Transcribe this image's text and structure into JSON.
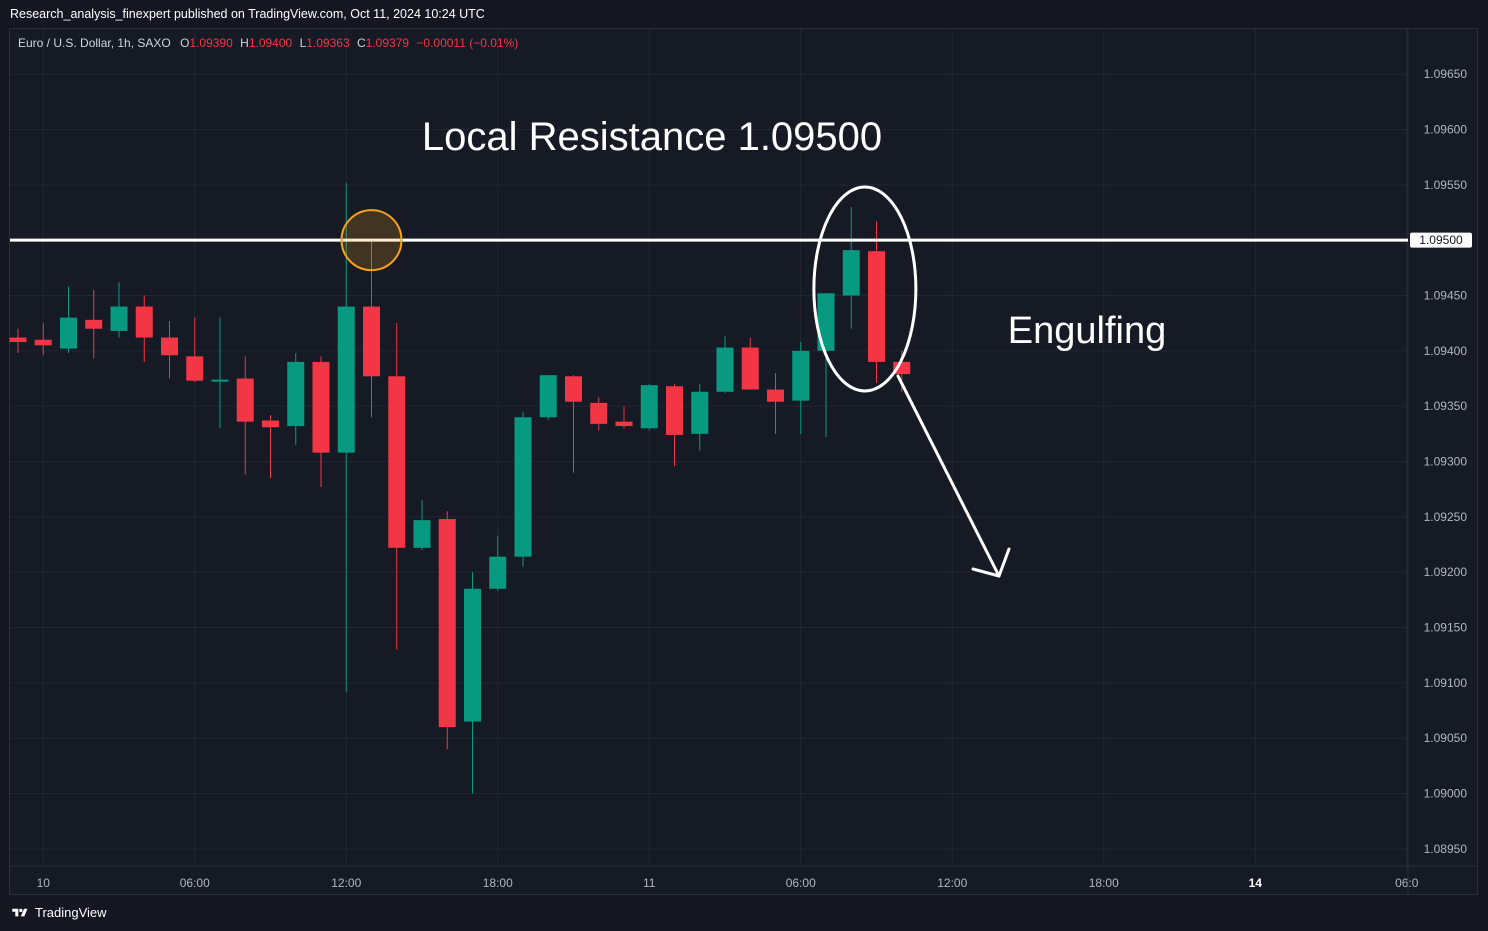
{
  "header": {
    "published_line": "Research_analysis_finexpert published on TradingView.com, Oct 11, 2024 10:24 UTC"
  },
  "legend": {
    "symbol": "Euro / U.S. Dollar, 1h, SAXO",
    "o_label": "O",
    "o_value": "1.09390",
    "h_label": "H",
    "h_value": "1.09400",
    "l_label": "L",
    "l_value": "1.09363",
    "c_label": "C",
    "c_value": "1.09379",
    "change": "−0.00011 (−0.01%)"
  },
  "footer": {
    "brand": "TradingView"
  },
  "colors": {
    "background": "#161a25",
    "up": "#089981",
    "down": "#f23645",
    "grid": "#232632",
    "axis_text": "#b2b5be",
    "annotation": "#ffffff",
    "highlight_circle": "#f7a21b"
  },
  "chart_data": {
    "type": "candlestick",
    "ylim": [
      1.08925,
      1.09675
    ],
    "y_ticks": [
      "1.09650",
      "1.09600",
      "1.09550",
      "1.09500",
      "1.09450",
      "1.09400",
      "1.09350",
      "1.09300",
      "1.09250",
      "1.09200",
      "1.09150",
      "1.09100",
      "1.09050",
      "1.09000",
      "1.08950"
    ],
    "x_ticks": [
      {
        "label": "10",
        "index": 1,
        "bold": false
      },
      {
        "label": "06:00",
        "index": 7,
        "bold": false
      },
      {
        "label": "12:00",
        "index": 13,
        "bold": false
      },
      {
        "label": "18:00",
        "index": 19,
        "bold": false
      },
      {
        "label": "11",
        "index": 25,
        "bold": false
      },
      {
        "label": "06:00",
        "index": 31,
        "bold": false
      },
      {
        "label": "12:00",
        "index": 37,
        "bold": false
      },
      {
        "label": "18:00",
        "index": 43,
        "bold": false
      },
      {
        "label": "14",
        "index": 49,
        "bold": true
      },
      {
        "label": "06:0",
        "index": 55,
        "bold": false
      }
    ],
    "candles": [
      {
        "o": 1.09412,
        "h": 1.0942,
        "l": 1.09398,
        "c": 1.09408
      },
      {
        "o": 1.0941,
        "h": 1.09425,
        "l": 1.09396,
        "c": 1.09405
      },
      {
        "o": 1.09402,
        "h": 1.09458,
        "l": 1.09398,
        "c": 1.0943
      },
      {
        "o": 1.09428,
        "h": 1.09455,
        "l": 1.09393,
        "c": 1.0942
      },
      {
        "o": 1.09418,
        "h": 1.09462,
        "l": 1.09412,
        "c": 1.0944
      },
      {
        "o": 1.0944,
        "h": 1.0945,
        "l": 1.0939,
        "c": 1.09412
      },
      {
        "o": 1.09412,
        "h": 1.09427,
        "l": 1.09375,
        "c": 1.09396
      },
      {
        "o": 1.09395,
        "h": 1.0943,
        "l": 1.09372,
        "c": 1.09373
      },
      {
        "o": 1.09374,
        "h": 1.0943,
        "l": 1.0933,
        "c": 1.09374
      },
      {
        "o": 1.09375,
        "h": 1.09395,
        "l": 1.09288,
        "c": 1.09336
      },
      {
        "o": 1.09337,
        "h": 1.09342,
        "l": 1.09285,
        "c": 1.09331
      },
      {
        "o": 1.09332,
        "h": 1.09398,
        "l": 1.09315,
        "c": 1.0939
      },
      {
        "o": 1.0939,
        "h": 1.09395,
        "l": 1.09277,
        "c": 1.09308
      },
      {
        "o": 1.09308,
        "h": 1.09552,
        "l": 1.09092,
        "c": 1.0944
      },
      {
        "o": 1.0944,
        "h": 1.095,
        "l": 1.0934,
        "c": 1.09377
      },
      {
        "o": 1.09377,
        "h": 1.09425,
        "l": 1.0913,
        "c": 1.09222
      },
      {
        "o": 1.09222,
        "h": 1.09265,
        "l": 1.0922,
        "c": 1.09247
      },
      {
        "o": 1.09248,
        "h": 1.09255,
        "l": 1.0904,
        "c": 1.0906
      },
      {
        "o": 1.09065,
        "h": 1.092,
        "l": 1.09,
        "c": 1.09185
      },
      {
        "o": 1.09185,
        "h": 1.09233,
        "l": 1.09183,
        "c": 1.09214
      },
      {
        "o": 1.09214,
        "h": 1.09345,
        "l": 1.09205,
        "c": 1.0934
      },
      {
        "o": 1.0934,
        "h": 1.09378,
        "l": 1.09338,
        "c": 1.09378
      },
      {
        "o": 1.09377,
        "h": 1.09378,
        "l": 1.0929,
        "c": 1.09354
      },
      {
        "o": 1.09353,
        "h": 1.09358,
        "l": 1.09328,
        "c": 1.09334
      },
      {
        "o": 1.09336,
        "h": 1.0935,
        "l": 1.0933,
        "c": 1.09332
      },
      {
        "o": 1.0933,
        "h": 1.0937,
        "l": 1.09328,
        "c": 1.09369
      },
      {
        "o": 1.09368,
        "h": 1.0937,
        "l": 1.09296,
        "c": 1.09324
      },
      {
        "o": 1.09325,
        "h": 1.0937,
        "l": 1.0931,
        "c": 1.09363
      },
      {
        "o": 1.09363,
        "h": 1.09413,
        "l": 1.09362,
        "c": 1.09403
      },
      {
        "o": 1.09403,
        "h": 1.09412,
        "l": 1.09366,
        "c": 1.09365
      },
      {
        "o": 1.09365,
        "h": 1.0938,
        "l": 1.09325,
        "c": 1.09354
      },
      {
        "o": 1.09355,
        "h": 1.09408,
        "l": 1.09325,
        "c": 1.094
      },
      {
        "o": 1.094,
        "h": 1.09452,
        "l": 1.09322,
        "c": 1.09452
      },
      {
        "o": 1.0945,
        "h": 1.0953,
        "l": 1.0942,
        "c": 1.09491
      },
      {
        "o": 1.0949,
        "h": 1.09517,
        "l": 1.09371,
        "c": 1.0939
      },
      {
        "o": 1.0939,
        "h": 1.094,
        "l": 1.09363,
        "c": 1.09379
      }
    ],
    "horizontal_line": {
      "y": 1.095,
      "label": "1.09500"
    },
    "annotations": {
      "resistance_text": "Local Resistance 1.09500",
      "pattern_text": "Engulfing"
    }
  }
}
